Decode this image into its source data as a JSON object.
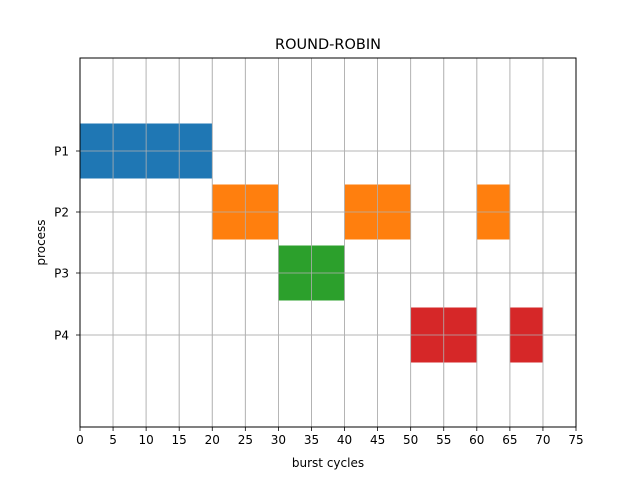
{
  "chart_data": {
    "type": "gantt",
    "title": "ROUND-ROBIN",
    "xlabel": "burst cycles",
    "ylabel": "process",
    "xlim": [
      0,
      75
    ],
    "xticks": [
      0,
      5,
      10,
      15,
      20,
      25,
      30,
      35,
      40,
      45,
      50,
      55,
      60,
      65,
      70,
      75
    ],
    "categories": [
      "P1",
      "P2",
      "P3",
      "P4"
    ],
    "grid": true,
    "series": [
      {
        "name": "P1",
        "color": "#1f77b4",
        "segments": [
          [
            0,
            20
          ]
        ]
      },
      {
        "name": "P2",
        "color": "#ff7f0e",
        "segments": [
          [
            20,
            30
          ],
          [
            40,
            50
          ],
          [
            60,
            65
          ]
        ]
      },
      {
        "name": "P3",
        "color": "#2ca02c",
        "segments": [
          [
            30,
            40
          ]
        ]
      },
      {
        "name": "P4",
        "color": "#d62728",
        "segments": [
          [
            50,
            60
          ],
          [
            65,
            70
          ]
        ]
      }
    ]
  }
}
